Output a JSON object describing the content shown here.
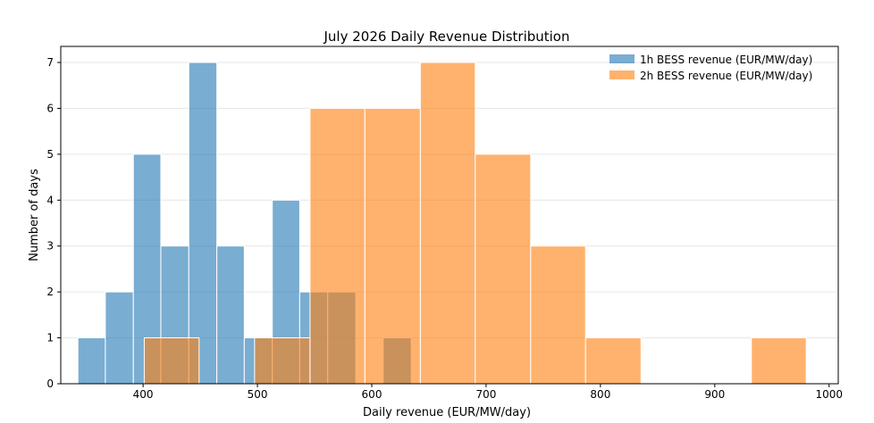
{
  "chart_data": {
    "type": "histogram",
    "title": "July 2026 Daily Revenue Distribution",
    "xlabel": "Daily revenue (EUR/MW/day)",
    "ylabel": "Number of days",
    "xlim": [
      328,
      1008
    ],
    "ylim": [
      0,
      7.35
    ],
    "xticks": [
      400,
      500,
      600,
      700,
      800,
      900,
      1000
    ],
    "yticks": [
      0,
      1,
      2,
      3,
      4,
      5,
      6,
      7
    ],
    "grid": "horizontal",
    "legend_position": "top-right",
    "series": [
      {
        "name": "1h BESS revenue (EUR/MW/day)",
        "color": "#1f77b4",
        "opacity": 0.6,
        "bins": [
          {
            "x0": 343,
            "x1": 367,
            "count": 1
          },
          {
            "x0": 367,
            "x1": 391.5,
            "count": 2
          },
          {
            "x0": 391.5,
            "x1": 415.5,
            "count": 5
          },
          {
            "x0": 415.5,
            "x1": 440,
            "count": 3
          },
          {
            "x0": 440,
            "x1": 464.5,
            "count": 7
          },
          {
            "x0": 464.5,
            "x1": 488.5,
            "count": 3
          },
          {
            "x0": 488.5,
            "x1": 513,
            "count": 1
          },
          {
            "x0": 513,
            "x1": 537,
            "count": 4
          },
          {
            "x0": 537,
            "x1": 561.5,
            "count": 2
          },
          {
            "x0": 561.5,
            "x1": 586,
            "count": 2
          },
          {
            "x0": 586,
            "x1": 610,
            "count": 0
          },
          {
            "x0": 610,
            "x1": 634.5,
            "count": 1
          }
        ]
      },
      {
        "name": "2h BESS revenue (EUR/MW/day)",
        "color": "#ff7f0e",
        "opacity": 0.6,
        "bins": [
          {
            "x0": 401,
            "x1": 449,
            "count": 1
          },
          {
            "x0": 449,
            "x1": 497.5,
            "count": 0
          },
          {
            "x0": 497.5,
            "x1": 546,
            "count": 1
          },
          {
            "x0": 546,
            "x1": 594,
            "count": 6
          },
          {
            "x0": 594,
            "x1": 642.5,
            "count": 6
          },
          {
            "x0": 642.5,
            "x1": 690.5,
            "count": 7
          },
          {
            "x0": 690.5,
            "x1": 739,
            "count": 5
          },
          {
            "x0": 739,
            "x1": 787,
            "count": 3
          },
          {
            "x0": 787,
            "x1": 835.5,
            "count": 1
          },
          {
            "x0": 835.5,
            "x1": 883.5,
            "count": 0
          },
          {
            "x0": 883.5,
            "x1": 932,
            "count": 0
          },
          {
            "x0": 932,
            "x1": 980,
            "count": 1
          }
        ]
      }
    ]
  }
}
